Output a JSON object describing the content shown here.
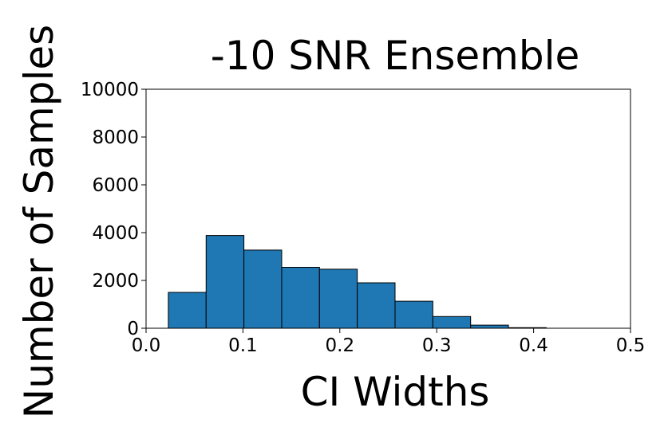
{
  "chart_data": {
    "type": "bar",
    "title": "-10 SNR Ensemble",
    "xlabel": "CI Widths",
    "ylabel": "Number of Samples",
    "xlim": [
      0.0,
      0.5
    ],
    "ylim": [
      0,
      10000
    ],
    "xticks": [
      "0.0",
      "0.1",
      "0.2",
      "0.3",
      "0.4",
      "0.5"
    ],
    "yticks": [
      "0",
      "2000",
      "4000",
      "6000",
      "8000",
      "10000"
    ],
    "grid": false,
    "bar_color": "#1f77b4",
    "edge_color": "#000000",
    "bins": [
      {
        "x0": 0.023,
        "x1": 0.062,
        "value": 1500
      },
      {
        "x0": 0.062,
        "x1": 0.101,
        "value": 3880
      },
      {
        "x0": 0.101,
        "x1": 0.14,
        "value": 3270
      },
      {
        "x0": 0.14,
        "x1": 0.179,
        "value": 2550
      },
      {
        "x0": 0.179,
        "x1": 0.218,
        "value": 2470
      },
      {
        "x0": 0.218,
        "x1": 0.257,
        "value": 1900
      },
      {
        "x0": 0.257,
        "x1": 0.296,
        "value": 1130
      },
      {
        "x0": 0.296,
        "x1": 0.335,
        "value": 490
      },
      {
        "x0": 0.335,
        "x1": 0.374,
        "value": 130
      },
      {
        "x0": 0.374,
        "x1": 0.413,
        "value": 25
      }
    ]
  }
}
